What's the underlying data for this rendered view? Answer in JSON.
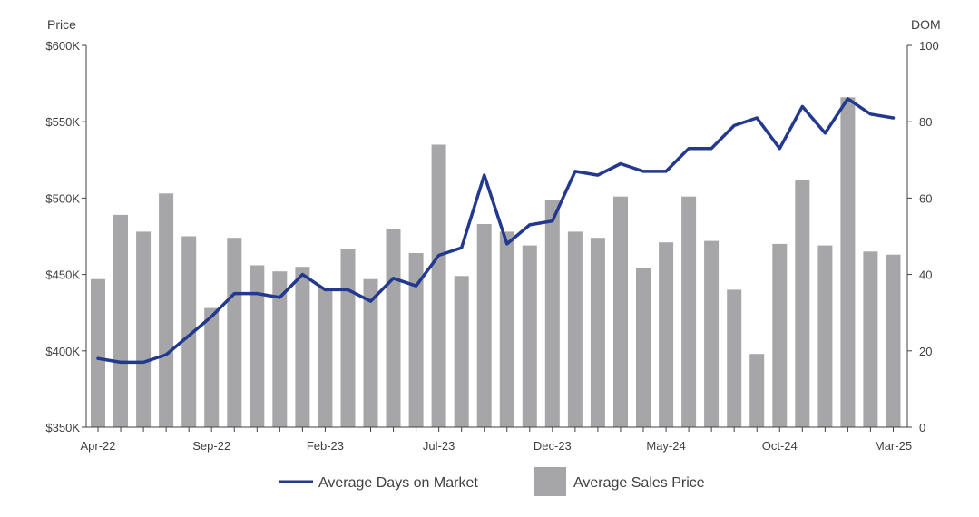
{
  "chart_data": {
    "type": "bar",
    "x_tick_labels": [
      "Apr-22",
      "Sep-22",
      "Feb-23",
      "Jul-23",
      "Dec-23",
      "May-24",
      "Oct-24",
      "Mar-25"
    ],
    "left_axis": {
      "title": "Price",
      "ylim": [
        350000,
        600000
      ],
      "ticks": [
        350000,
        400000,
        450000,
        500000,
        550000,
        600000
      ],
      "tick_labels": [
        "$350K",
        "$400K",
        "$450K",
        "$500K",
        "$550K",
        "$600K"
      ]
    },
    "right_axis": {
      "title": "DOM",
      "ylim": [
        0,
        100
      ],
      "ticks": [
        0,
        20,
        40,
        60,
        80,
        100
      ],
      "tick_labels": [
        "0",
        "20",
        "40",
        "60",
        "80",
        "100"
      ]
    },
    "series": [
      {
        "name": "Average Sales Price",
        "type": "bar",
        "axis": "left",
        "color": "#a6a6a8",
        "values": [
          447000,
          489000,
          478000,
          503000,
          475000,
          428000,
          474000,
          456000,
          452000,
          455000,
          441000,
          467000,
          447000,
          480000,
          464000,
          535000,
          449000,
          483000,
          478000,
          469000,
          499000,
          478000,
          474000,
          501000,
          454000,
          471000,
          501000,
          472000,
          440000,
          398000,
          470000,
          512000,
          469000,
          566000,
          465000,
          463000
        ]
      },
      {
        "name": "Average Days on Market",
        "type": "line",
        "axis": "right",
        "color": "#23388f",
        "values": [
          18,
          17,
          17,
          19,
          24,
          29,
          35,
          35,
          34,
          40,
          36,
          36,
          33,
          39,
          37,
          45,
          47,
          66,
          48,
          53,
          54,
          67,
          66,
          69,
          67,
          67,
          73,
          73,
          79,
          81,
          73,
          84,
          77,
          86,
          82,
          81
        ]
      }
    ],
    "grid": false,
    "legend": "bottom-center",
    "legend_entries": [
      "Average Days on Market",
      "Average Sales Price"
    ]
  }
}
